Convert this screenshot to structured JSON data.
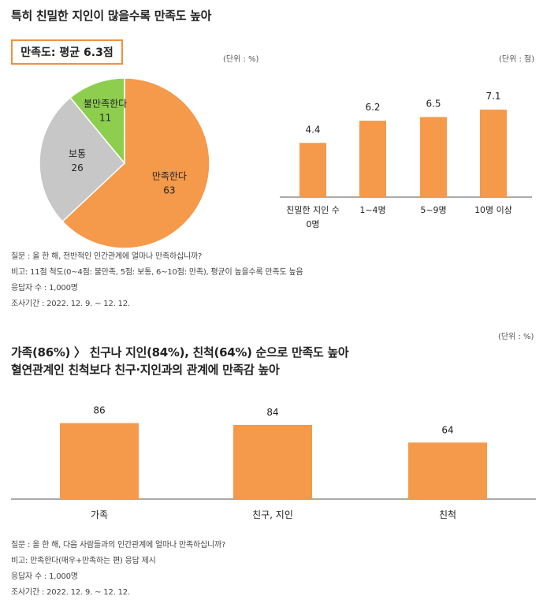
{
  "top_title": "특히 친밀한 지인이 많을수록 만족도 높아",
  "avg_label": "만족도: 평균 6.3점",
  "pie_unit": "(단위 : %)",
  "bar1_unit": "(단위 : 점)",
  "notes1": [
    "질문 : 올 한 해, 전반적인 인간관계에 얼마나 만족하십니까?",
    "비고: 11점 척도(0~4점: 불만족, 5점: 보통, 6~10점: 만족), 평균이 높을수록 만족도 높음",
    "응답자 수 : 1,000명",
    "조사기간 : 2022. 12. 9. ~ 12. 12."
  ],
  "bar2_unit": "(단위 : %)",
  "bottom_title_line1": "가족(86%) 〉 친구나 지인(84%), 친척(64%) 순으로 만족도 높아",
  "bottom_title_line2": "혈연관계인 친척보다 친구·지인과의 관계에 만족감 높아",
  "notes2": [
    "질문 : 올 한 해, 다음 사람들과의 인간관계에 얼마나 만족하십니까?",
    "비고: 만족한다(매우+만족하는 편) 응답 제시",
    "응답자 수 : 1,000명",
    "조사기간 : 2022. 12. 9. ~ 12. 12."
  ],
  "colors": {
    "orange": "#f5994a",
    "gray": "#c7c7c7",
    "green": "#8dce4f",
    "border": "#f0913f"
  },
  "chart_data": [
    {
      "type": "pie",
      "labels": [
        "만족한다",
        "보통",
        "불만족한다"
      ],
      "values": [
        63,
        26,
        11
      ],
      "colors": [
        "#f5994a",
        "#c7c7c7",
        "#8dce4f"
      ]
    },
    {
      "type": "bar",
      "categories": [
        "친밀한 지인 수 0명",
        "1~4명",
        "5~9명",
        "10명 이상"
      ],
      "category_lines": [
        [
          "친밀한 지인 수",
          "0명"
        ],
        [
          "1~4명"
        ],
        [
          "5~9명"
        ],
        [
          "10명 이상"
        ]
      ],
      "values": [
        4.4,
        6.2,
        6.5,
        7.1
      ],
      "value_labels": [
        "4.4",
        "6.2",
        "6.5",
        "7.1"
      ],
      "color": "#f5994a"
    },
    {
      "type": "bar",
      "categories": [
        "가족",
        "친구, 지인",
        "친척"
      ],
      "values": [
        86,
        84,
        64
      ],
      "value_labels": [
        "86",
        "84",
        "64"
      ],
      "color": "#f5994a"
    }
  ]
}
